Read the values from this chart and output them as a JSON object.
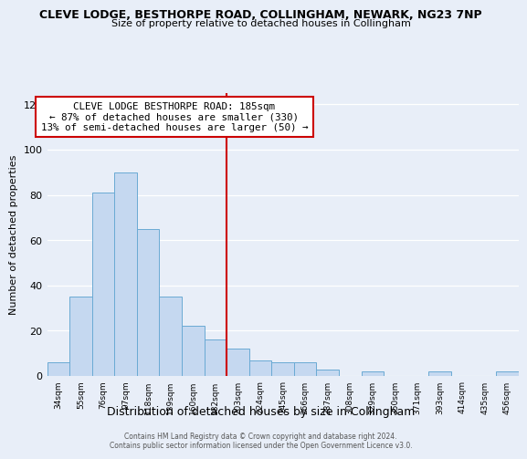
{
  "title": "CLEVE LODGE, BESTHORPE ROAD, COLLINGHAM, NEWARK, NG23 7NP",
  "subtitle": "Size of property relative to detached houses in Collingham",
  "xlabel": "Distribution of detached houses by size in Collingham",
  "ylabel": "Number of detached properties",
  "bar_labels": [
    "34sqm",
    "55sqm",
    "76sqm",
    "97sqm",
    "118sqm",
    "139sqm",
    "160sqm",
    "182sqm",
    "203sqm",
    "224sqm",
    "245sqm",
    "266sqm",
    "287sqm",
    "308sqm",
    "329sqm",
    "350sqm",
    "371sqm",
    "393sqm",
    "414sqm",
    "435sqm",
    "456sqm"
  ],
  "bar_values": [
    6,
    35,
    81,
    90,
    65,
    35,
    22,
    16,
    12,
    7,
    6,
    6,
    3,
    0,
    2,
    0,
    0,
    2,
    0,
    0,
    2
  ],
  "bar_color": "#c5d8f0",
  "bar_edge_color": "#6aaad4",
  "vline_x": 7.5,
  "vline_color": "#cc0000",
  "annotation_title": "CLEVE LODGE BESTHORPE ROAD: 185sqm",
  "annotation_line1": "← 87% of detached houses are smaller (330)",
  "annotation_line2": "13% of semi-detached houses are larger (50) →",
  "annotation_box_color": "#ffffff",
  "annotation_box_edge": "#cc0000",
  "ylim": [
    0,
    125
  ],
  "yticks": [
    0,
    20,
    40,
    60,
    80,
    100,
    120
  ],
  "footer1": "Contains HM Land Registry data © Crown copyright and database right 2024.",
  "footer2": "Contains public sector information licensed under the Open Government Licence v3.0.",
  "background_color": "#e8eef8",
  "grid_color": "#ffffff",
  "title_fontsize": 9,
  "subtitle_fontsize": 8
}
